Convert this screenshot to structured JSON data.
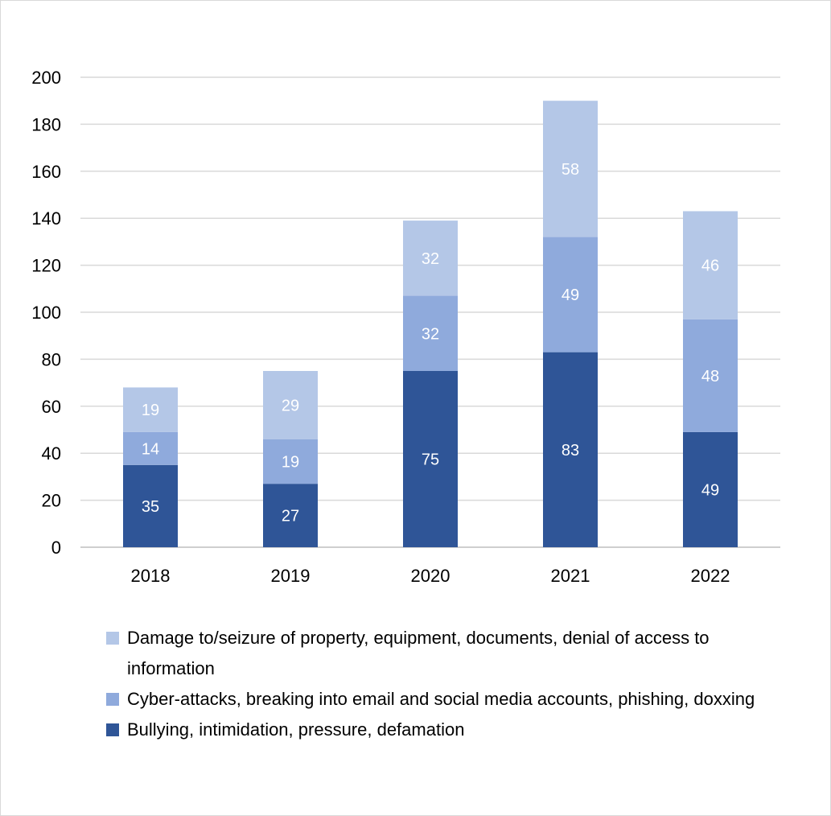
{
  "chart_data": {
    "type": "bar",
    "stacked": true,
    "title": "",
    "xlabel": "",
    "ylabel": "",
    "categories": [
      "2018",
      "2019",
      "2020",
      "2021",
      "2022"
    ],
    "ylim": [
      0,
      200
    ],
    "yticks": [
      "0",
      "20",
      "40",
      "60",
      "80",
      "100",
      "120",
      "140",
      "160",
      "180",
      "200"
    ],
    "grid": true,
    "legend_position": "bottom",
    "series": [
      {
        "name": "Bullying, intimidation, pressure, defamation",
        "color": "#2f5597",
        "values": [
          35,
          27,
          75,
          83,
          49
        ]
      },
      {
        "name": "Cyber-attacks, breaking into email and social media accounts, phishing, doxxing",
        "color": "#8faadc",
        "values": [
          14,
          19,
          32,
          49,
          48
        ]
      },
      {
        "name": "Damage to/seizure of property, equipment, documents, denial of access to information",
        "color": "#b4c7e7",
        "values": [
          19,
          29,
          32,
          58,
          46
        ]
      }
    ]
  }
}
